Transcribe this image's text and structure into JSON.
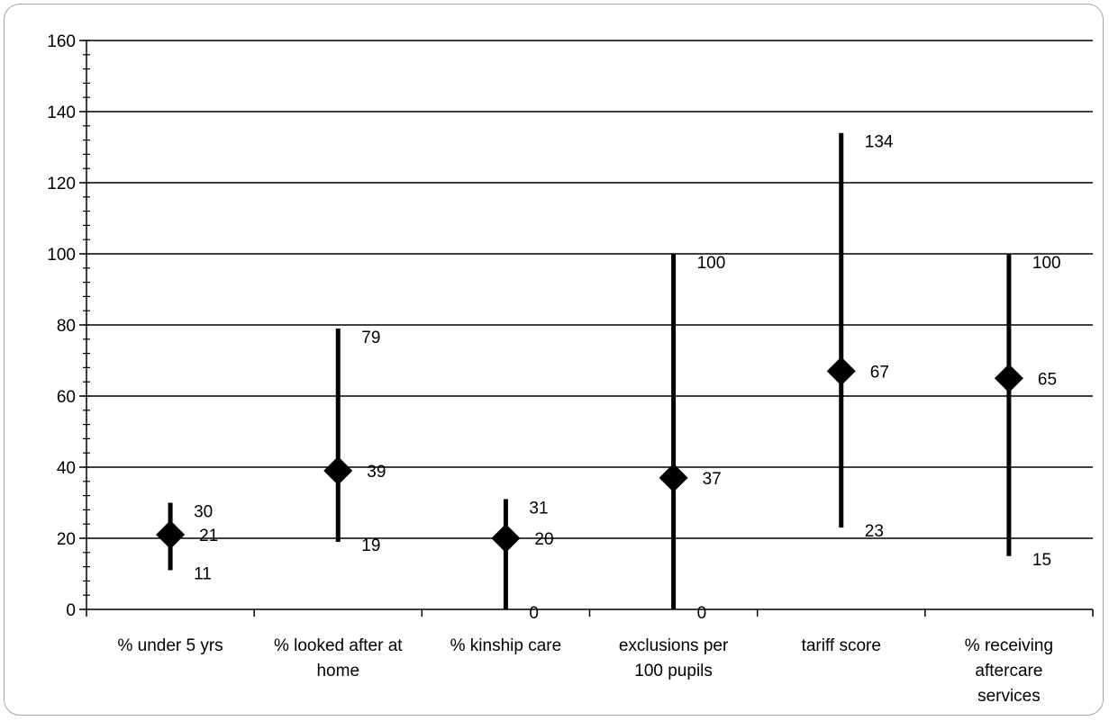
{
  "chart_data": {
    "type": "range",
    "categories": [
      [
        "% under 5 yrs"
      ],
      [
        "% looked after at",
        "home"
      ],
      [
        "% kinship care"
      ],
      [
        "exclusions per",
        "100 pupils"
      ],
      [
        "tariff score"
      ],
      [
        "% receiving",
        "aftercare",
        "services"
      ]
    ],
    "series": [
      {
        "name": "",
        "values": [
          {
            "low": 11,
            "mid": 21,
            "high": 30
          },
          {
            "low": 19,
            "mid": 39,
            "high": 79
          },
          {
            "low": 0,
            "mid": 20,
            "high": 31
          },
          {
            "low": 0,
            "mid": 37,
            "high": 100
          },
          {
            "low": 23,
            "mid": 67,
            "high": 134
          },
          {
            "low": 15,
            "mid": 65,
            "high": 100
          }
        ]
      }
    ],
    "data_labels": [
      {
        "high": "30",
        "mid": "21",
        "low": "11"
      },
      {
        "high": "79",
        "mid": "39",
        "low": "19"
      },
      {
        "high": "31",
        "mid": "20",
        "low": "0"
      },
      {
        "high": "100",
        "mid": "37",
        "low": "0"
      },
      {
        "high": "134",
        "mid": "67",
        "low": "23"
      },
      {
        "high": "100",
        "mid": "65",
        "low": "15"
      }
    ],
    "ylim": [
      0,
      160
    ],
    "yticks": [
      "0",
      "20",
      "40",
      "60",
      "80",
      "100",
      "120",
      "140",
      "160"
    ],
    "ytick_values": [
      0,
      20,
      40,
      60,
      80,
      100,
      120,
      140,
      160
    ],
    "minor_tick_step": 4,
    "grid": true,
    "title": "",
    "xlabel": "",
    "ylabel": "",
    "colors": {
      "mark": "#000000",
      "grid": "#000000",
      "frame": "#a6a6a6"
    }
  }
}
